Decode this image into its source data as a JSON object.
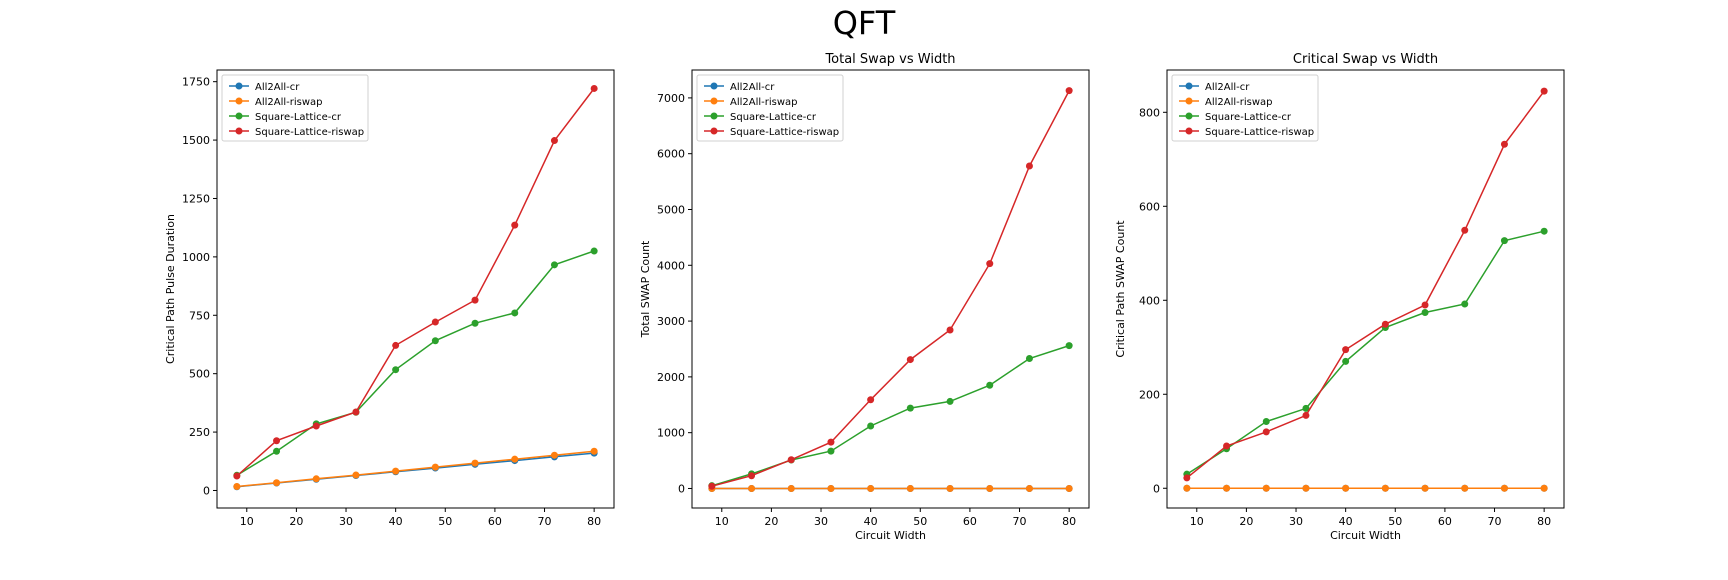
{
  "figure": {
    "title": "QFT"
  },
  "chart_data": [
    {
      "type": "line",
      "title": "",
      "xlabel": "",
      "ylabel": "Critical Path Pulse Duration",
      "xlim": [
        4,
        84
      ],
      "ylim": [
        -75,
        1800
      ],
      "xticks": [
        10,
        20,
        30,
        40,
        50,
        60,
        70,
        80
      ],
      "yticks": [
        0,
        250,
        500,
        750,
        1000,
        1250,
        1500,
        1750
      ],
      "grid": false,
      "legend": "top-left",
      "x": [
        8,
        16,
        24,
        32,
        40,
        48,
        56,
        64,
        72,
        80
      ],
      "series": [
        {
          "name": "All2All-cr",
          "color": "#1f77b4",
          "values": [
            16,
            32,
            48,
            64,
            80,
            96,
            112,
            128,
            144,
            160
          ]
        },
        {
          "name": "All2All-riswap",
          "color": "#ff7f0e",
          "values": [
            17,
            33,
            50,
            66,
            83,
            100,
            117,
            134,
            151,
            168
          ]
        },
        {
          "name": "Square-Lattice-cr",
          "color": "#2ca02c",
          "values": [
            65,
            168,
            285,
            335,
            517,
            641,
            716,
            760,
            966,
            1025
          ]
        },
        {
          "name": "Square-Lattice-riswap",
          "color": "#d62728",
          "values": [
            62,
            213,
            276,
            336,
            621,
            721,
            815,
            1136,
            1498,
            1721
          ]
        }
      ]
    },
    {
      "type": "line",
      "title": "Total Swap vs Width",
      "xlabel": "Circuit Width",
      "ylabel": "Total SWAP Count",
      "xlim": [
        4,
        84
      ],
      "ylim": [
        -350,
        7500
      ],
      "xticks": [
        10,
        20,
        30,
        40,
        50,
        60,
        70,
        80
      ],
      "yticks": [
        0,
        1000,
        2000,
        3000,
        4000,
        5000,
        6000,
        7000
      ],
      "grid": false,
      "legend": "top-left",
      "x": [
        8,
        16,
        24,
        32,
        40,
        48,
        56,
        64,
        72,
        80
      ],
      "series": [
        {
          "name": "All2All-cr",
          "color": "#1f77b4",
          "values": [
            0,
            0,
            0,
            0,
            0,
            0,
            0,
            0,
            0,
            0
          ]
        },
        {
          "name": "All2All-riswap",
          "color": "#ff7f0e",
          "values": [
            0,
            0,
            0,
            0,
            0,
            0,
            0,
            0,
            0,
            0
          ]
        },
        {
          "name": "Square-Lattice-cr",
          "color": "#2ca02c",
          "values": [
            50,
            262,
            510,
            670,
            1120,
            1440,
            1560,
            1850,
            2330,
            2560
          ]
        },
        {
          "name": "Square-Lattice-riswap",
          "color": "#d62728",
          "values": [
            40,
            228,
            515,
            830,
            1590,
            2310,
            2840,
            4030,
            5780,
            7130
          ]
        }
      ]
    },
    {
      "type": "line",
      "title": "Critical Swap vs Width",
      "xlabel": "Circuit Width",
      "ylabel": "Critical Path SWAP Count",
      "xlim": [
        4,
        84
      ],
      "ylim": [
        -42,
        890
      ],
      "xticks": [
        10,
        20,
        30,
        40,
        50,
        60,
        70,
        80
      ],
      "yticks": [
        0,
        200,
        400,
        600,
        800
      ],
      "grid": false,
      "legend": "top-left",
      "x": [
        8,
        16,
        24,
        32,
        40,
        48,
        56,
        64,
        72,
        80
      ],
      "series": [
        {
          "name": "All2All-cr",
          "color": "#1f77b4",
          "values": [
            0,
            0,
            0,
            0,
            0,
            0,
            0,
            0,
            0,
            0
          ]
        },
        {
          "name": "All2All-riswap",
          "color": "#ff7f0e",
          "values": [
            0,
            0,
            0,
            0,
            0,
            0,
            0,
            0,
            0,
            0
          ]
        },
        {
          "name": "Square-Lattice-cr",
          "color": "#2ca02c",
          "values": [
            30,
            84,
            142,
            170,
            270,
            342,
            374,
            392,
            527,
            547
          ]
        },
        {
          "name": "Square-Lattice-riswap",
          "color": "#d62728",
          "values": [
            22,
            90,
            120,
            155,
            295,
            349,
            390,
            549,
            732,
            845
          ]
        }
      ]
    }
  ]
}
